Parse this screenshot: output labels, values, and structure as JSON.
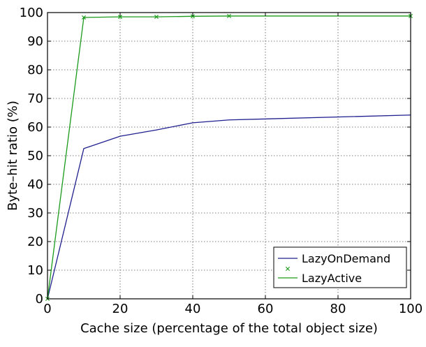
{
  "chart_data": {
    "type": "line",
    "xlabel": "Cache size (percentage of the total object size)",
    "ylabel": "Byte–hit ratio (%)",
    "xlim": [
      0,
      100
    ],
    "ylim": [
      0,
      100
    ],
    "x_ticks": [
      0,
      20,
      40,
      60,
      80,
      100
    ],
    "y_ticks": [
      0,
      10,
      20,
      30,
      40,
      50,
      60,
      70,
      80,
      90,
      100
    ],
    "grid": true,
    "legend_position": "bottom-right",
    "series": [
      {
        "name": "LazyOnDemand",
        "color": "#1f1f8f",
        "marker": "none",
        "x": [
          0,
          10,
          20,
          30,
          40,
          50,
          100
        ],
        "y": [
          0,
          52.5,
          56.8,
          59,
          61.5,
          62.5,
          64.2
        ]
      },
      {
        "name": "LazyActive",
        "color": "#1a9a1a",
        "marker": "x",
        "x": [
          0,
          10,
          20,
          30,
          40,
          50,
          100
        ],
        "y": [
          0,
          98.3,
          98.5,
          98.5,
          98.7,
          98.8,
          98.8
        ]
      }
    ]
  }
}
